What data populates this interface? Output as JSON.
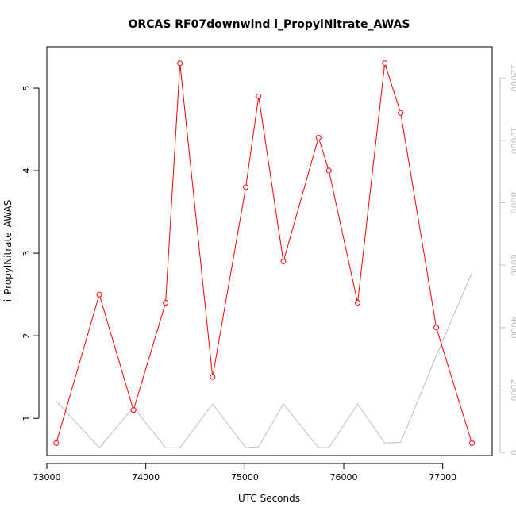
{
  "chart_data": {
    "type": "line",
    "title": "ORCAS RF07downwind i_PropylNitrate_AWAS",
    "xlabel": "UTC Seconds",
    "ylabel": "i_PropylNitrate_AWAS",
    "xlim": [
      73000,
      77500
    ],
    "ylim": [
      0.55,
      5.5
    ],
    "x_ticks": [
      73000,
      74000,
      75000,
      76000,
      77000
    ],
    "y_ticks": [
      1,
      2,
      3,
      4,
      5
    ],
    "y2lim": [
      -100,
      13000
    ],
    "y2_ticks": [
      0,
      2000,
      4000,
      6000,
      8000,
      10000,
      12000
    ],
    "grid": false,
    "legend": "none",
    "series": [
      {
        "color": "#ff0000",
        "axis": "left",
        "markers": "open-circle",
        "x": [
          73095,
          73530,
          73875,
          74200,
          74345,
          74675,
          75010,
          75140,
          75390,
          75745,
          75850,
          76140,
          76415,
          76575,
          76935,
          77295
        ],
        "y": [
          0.7,
          2.5,
          1.1,
          2.4,
          5.3,
          1.5,
          3.8,
          4.9,
          2.9,
          4.4,
          4.0,
          2.4,
          5.3,
          4.7,
          2.1,
          0.7
        ]
      },
      {
        "color": "#bebebe",
        "axis": "right",
        "markers": "none",
        "x": [
          73095,
          73530,
          73875,
          74200,
          74345,
          74675,
          75010,
          75140,
          75390,
          75745,
          75850,
          76140,
          76415,
          76575,
          76935,
          77295
        ],
        "y": [
          1650,
          150,
          1450,
          150,
          150,
          1550,
          150,
          180,
          1550,
          150,
          150,
          1550,
          300,
          320,
          3100,
          5750
        ]
      }
    ]
  }
}
